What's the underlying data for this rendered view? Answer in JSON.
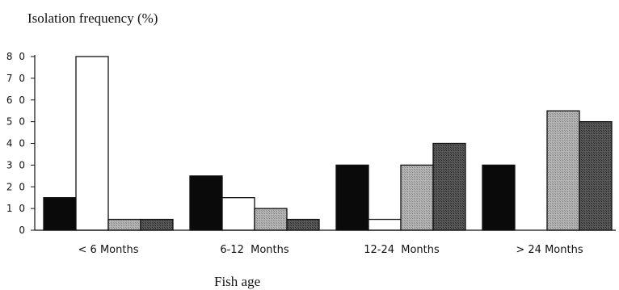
{
  "chart_data": {
    "type": "bar",
    "ylabel": "Isolation frequency (%)",
    "xlabel": "Fish age",
    "categories": [
      "< 6 Months",
      "6-12  Months",
      "12-24  Months",
      "> 24 Months"
    ],
    "ylim": [
      0,
      80
    ],
    "yticks": [
      "0",
      "1 0",
      "2 0",
      "3 0",
      "4 0",
      "5 0",
      "6 0",
      "7 0",
      "8 0"
    ],
    "grid": false,
    "series": [
      {
        "values": [
          15,
          25,
          30,
          30
        ],
        "color": "#0a0a0a"
      },
      {
        "values": [
          80,
          15,
          5,
          0
        ],
        "color": "#ffffff"
      },
      {
        "values": [
          5,
          10,
          30,
          55
        ],
        "color": "#9a9a9a"
      },
      {
        "values": [
          5,
          5,
          40,
          50
        ],
        "color": "#4a4a4a"
      }
    ]
  }
}
